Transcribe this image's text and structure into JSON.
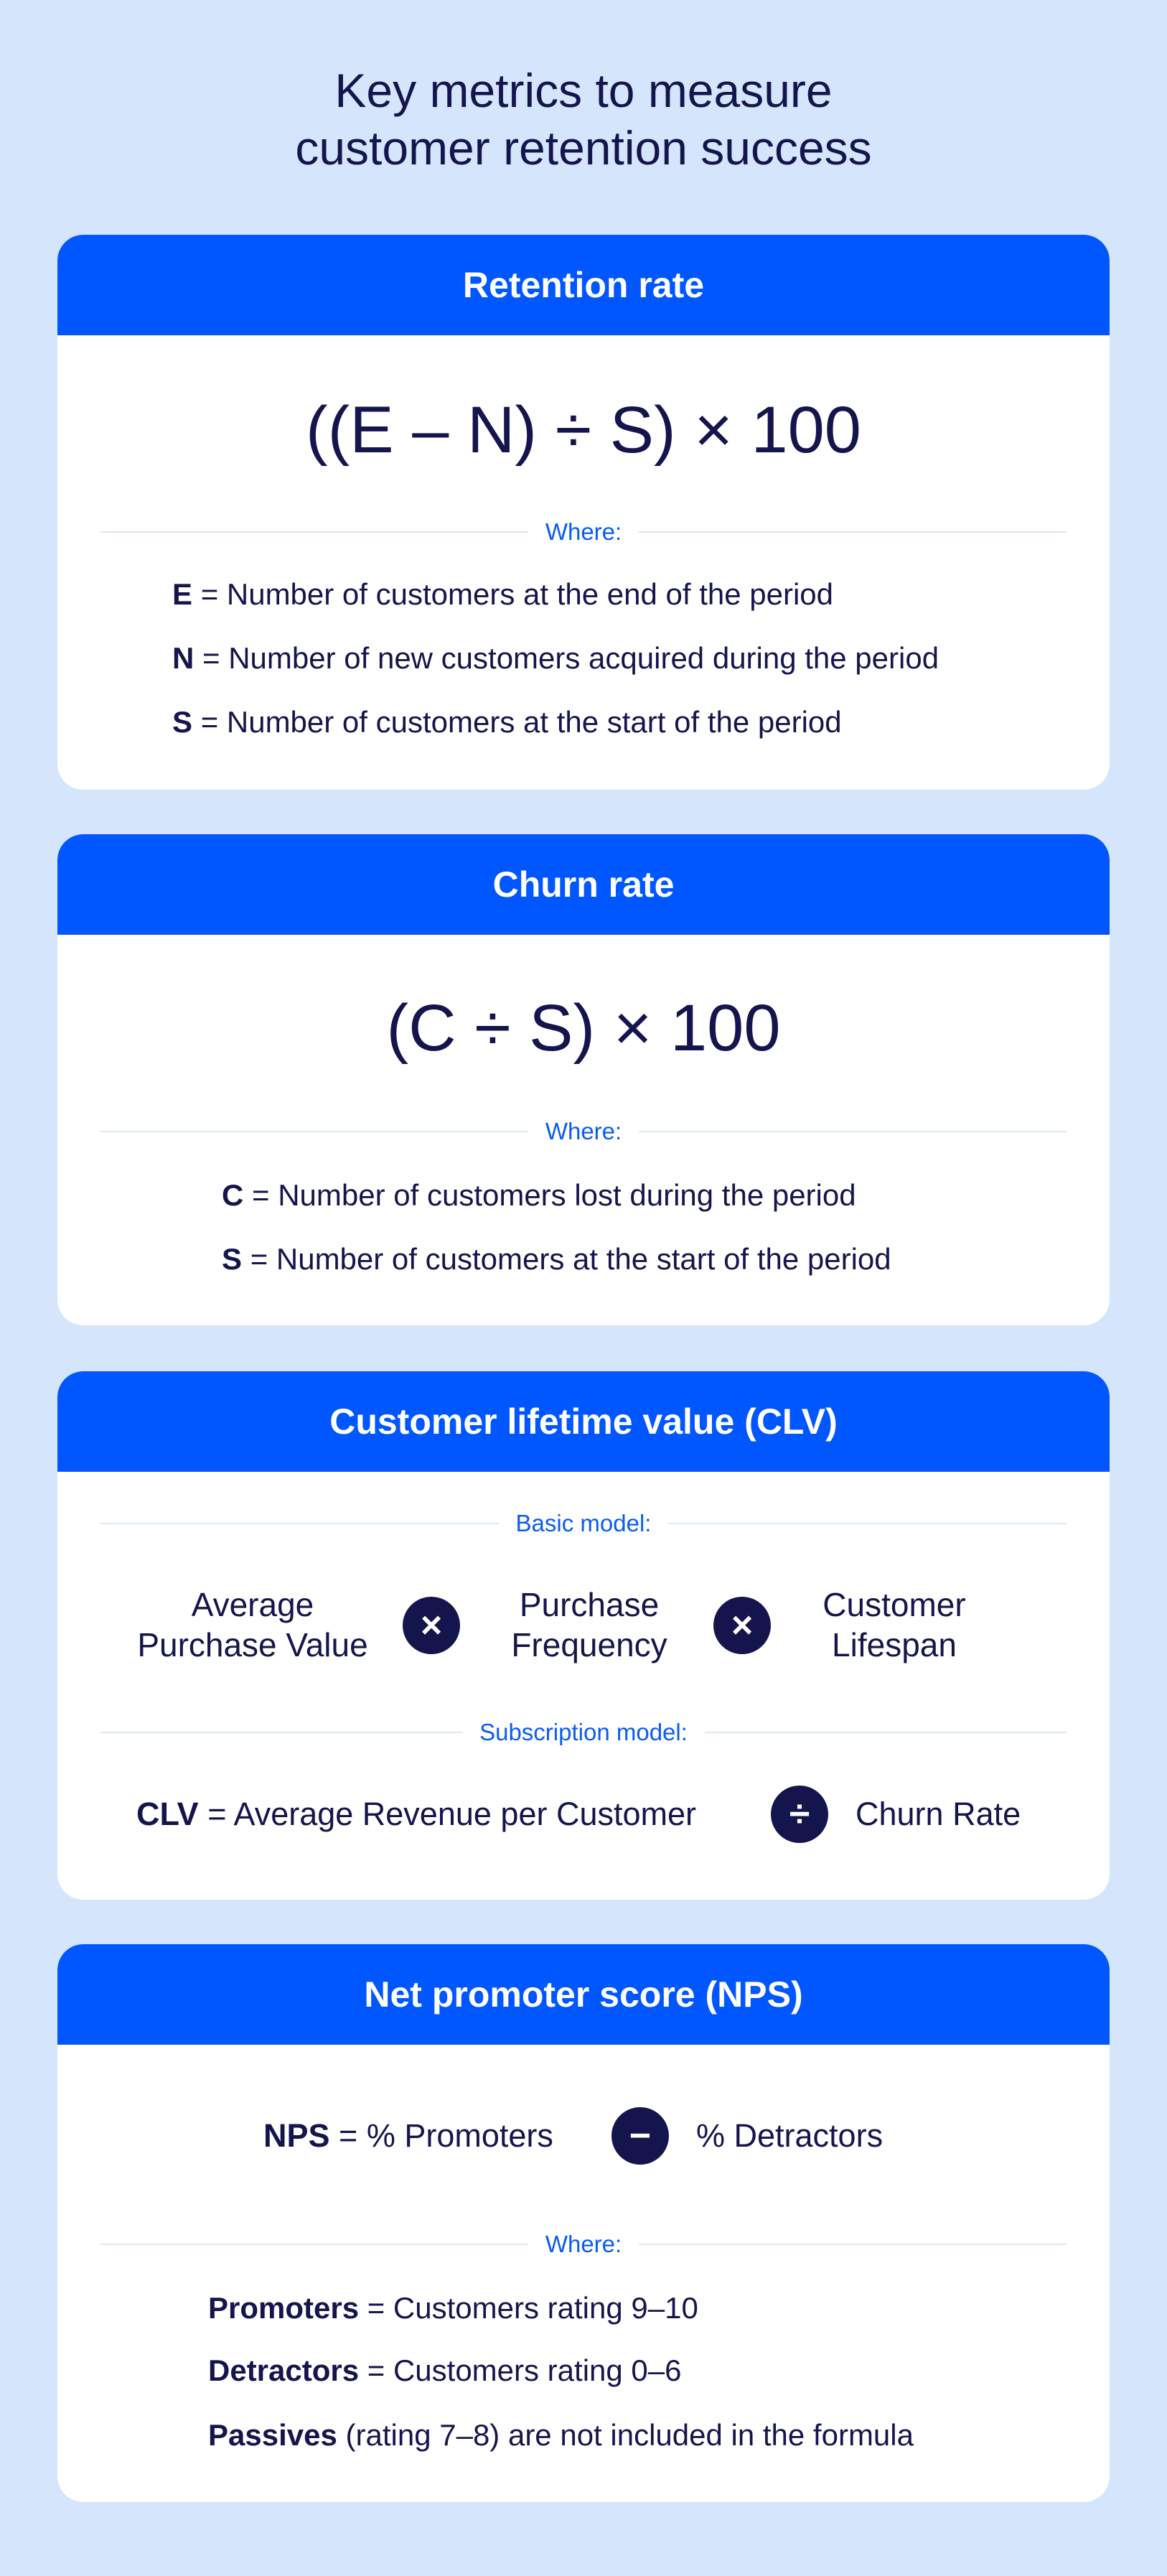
{
  "title": {
    "line1": "Key metrics to measure",
    "line2": "customer retention success"
  },
  "retention": {
    "heading": "Retention rate",
    "formula": "((E – N) ÷ S) × 100",
    "where": "Where:",
    "defs": [
      {
        "sym": "E",
        "text": "= Number of customers at the end of the period"
      },
      {
        "sym": "N",
        "text": "= Number of new customers acquired during the period"
      },
      {
        "sym": "S",
        "text": "= Number of customers at the start of the period"
      }
    ]
  },
  "churn": {
    "heading": "Churn rate",
    "formula": "(C ÷ S) × 100",
    "where": "Where:",
    "defs": [
      {
        "sym": "C",
        "text": "= Number of customers lost during the period"
      },
      {
        "sym": "S",
        "text": "= Number of customers at the start of the period"
      }
    ]
  },
  "clv": {
    "heading": "Customer lifetime value (CLV)",
    "basic_label": "Basic model:",
    "terms": [
      {
        "l1": "Average",
        "l2": "Purchase Value"
      },
      {
        "l1": "Purchase",
        "l2": "Frequency"
      },
      {
        "l1": "Customer",
        "l2": "Lifespan"
      }
    ],
    "times": "×",
    "subscription_label": "Subscription model:",
    "sym": "CLV",
    "rhs": "= Average Revenue per Customer",
    "divide": "÷",
    "divisor": "Churn Rate"
  },
  "nps": {
    "heading": "Net promoter score (NPS)",
    "sym": "NPS",
    "lhs": "= % Promoters",
    "minus": "−",
    "rhs": "% Detractors",
    "where": "Where:",
    "defs": [
      {
        "sym": "Promoters",
        "text": "= Customers rating 9–10"
      },
      {
        "sym": "Detractors",
        "text": "= Customers rating 0–6"
      },
      {
        "sym": "Passives",
        "text": "(rating 7–8) are not included in the formula"
      }
    ]
  },
  "colors": {
    "background": "#d4e5fc",
    "header": "#0057ff",
    "text": "#15154d",
    "label": "#0a5cf0"
  }
}
